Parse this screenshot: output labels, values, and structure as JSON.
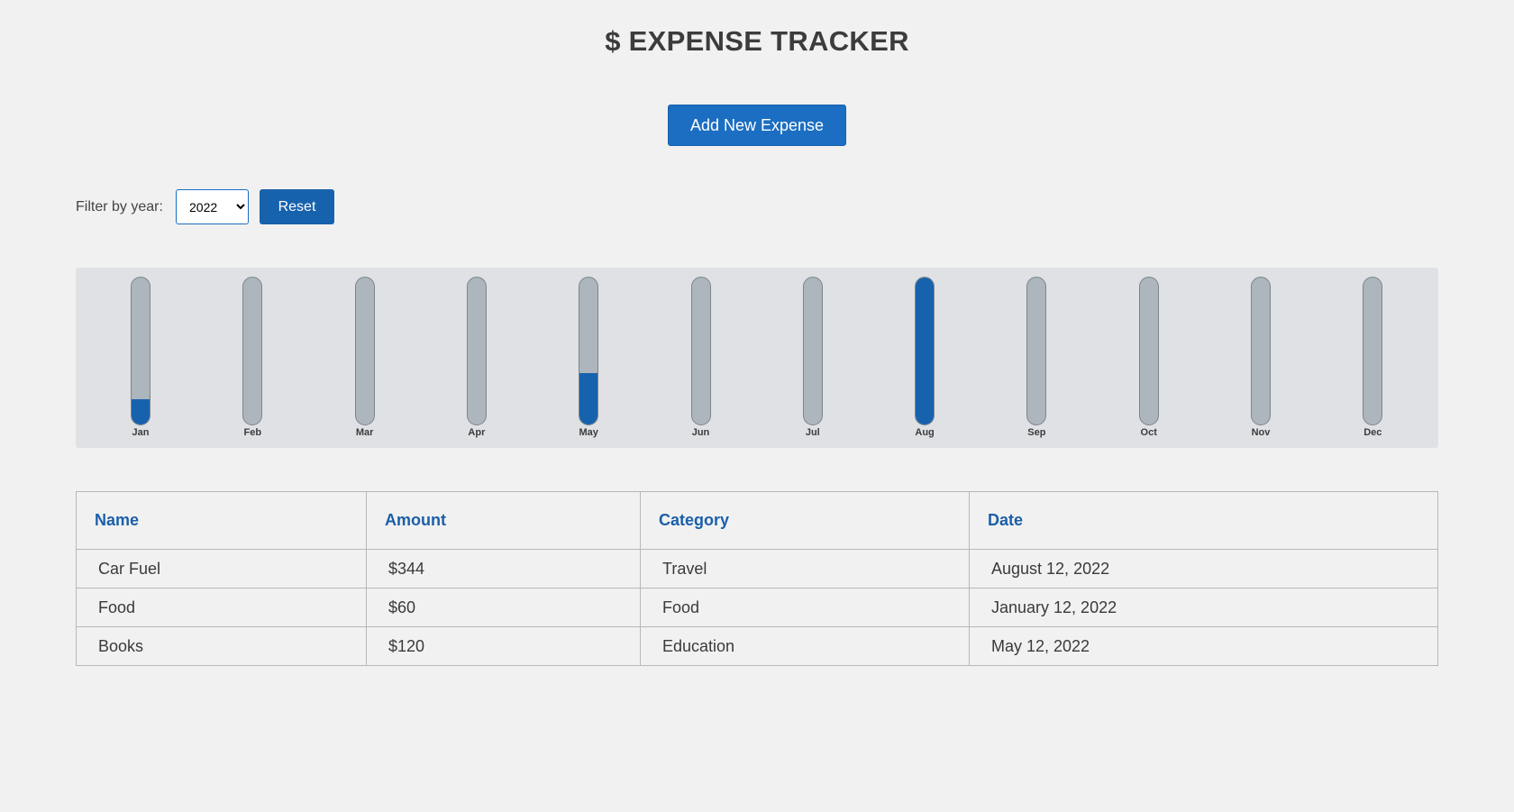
{
  "header": {
    "title": "$ EXPENSE TRACKER"
  },
  "actions": {
    "add_label": "Add New Expense"
  },
  "filter": {
    "label": "Filter by year:",
    "selected_year": "2022",
    "year_options": [
      "2022"
    ],
    "reset_label": "Reset"
  },
  "chart_data": {
    "type": "bar",
    "categories": [
      "Jan",
      "Feb",
      "Mar",
      "Apr",
      "May",
      "Jun",
      "Jul",
      "Aug",
      "Sep",
      "Oct",
      "Nov",
      "Dec"
    ],
    "values": [
      60,
      0,
      0,
      0,
      120,
      0,
      0,
      344,
      0,
      0,
      0,
      0
    ],
    "max": 344,
    "fill_color": "#1762ad",
    "track_color": "#adb5bd"
  },
  "table": {
    "headers": [
      "Name",
      "Amount",
      "Category",
      "Date"
    ],
    "rows": [
      [
        "Car Fuel",
        "$344",
        "Travel",
        "August 12, 2022"
      ],
      [
        "Food",
        "$60",
        "Food",
        "January 12, 2022"
      ],
      [
        "Books",
        "$120",
        "Education",
        "May 12, 2022"
      ]
    ]
  },
  "colors": {
    "primary": "#1b6ec2",
    "background": "#f1f1f1",
    "header_text": "#1b5fa8"
  }
}
